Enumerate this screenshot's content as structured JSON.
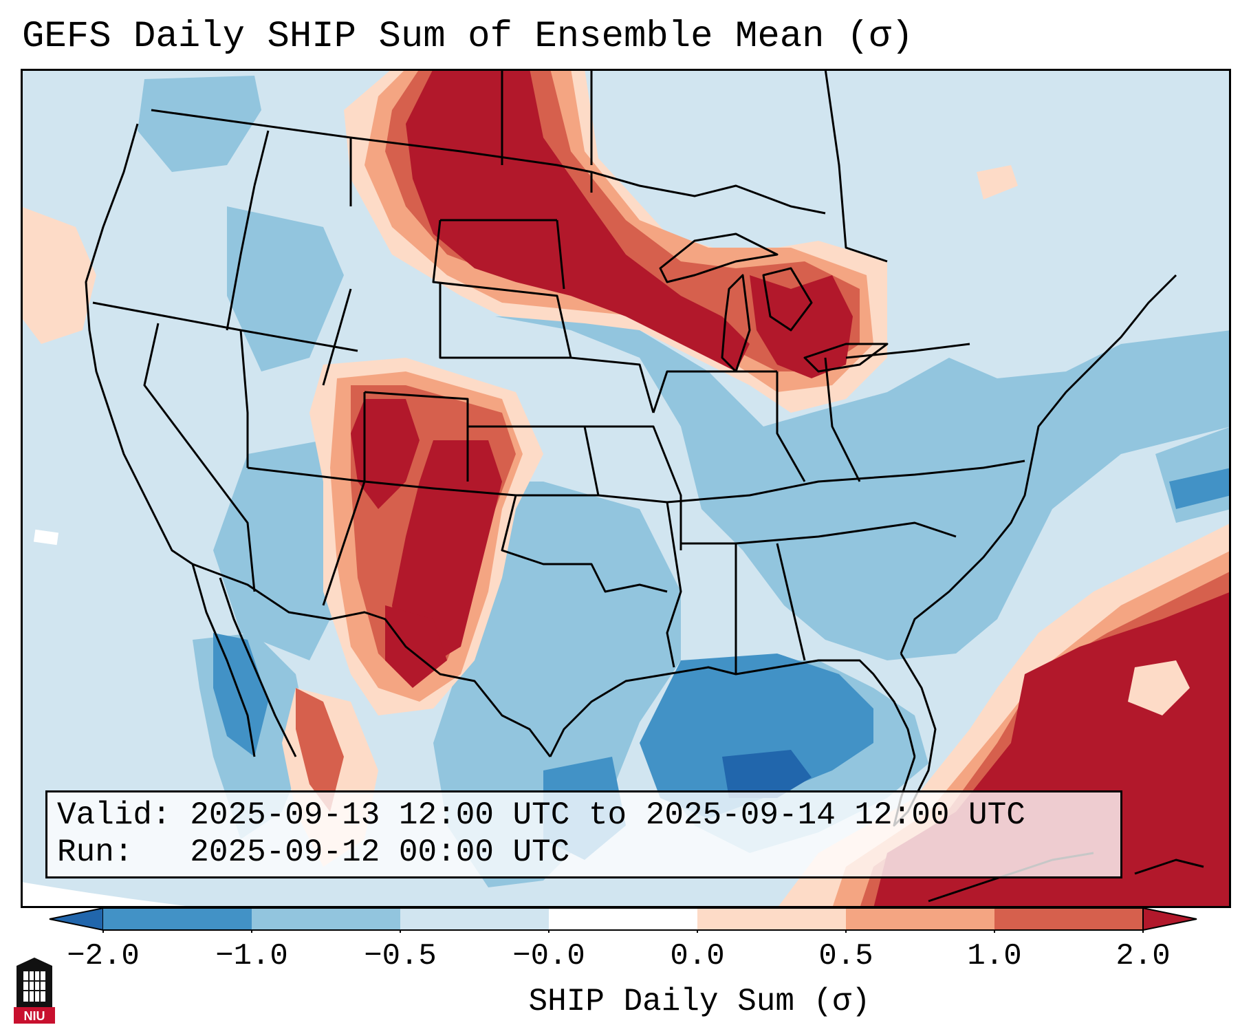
{
  "title": "GEFS Daily SHIP Sum of Ensemble Mean (σ)",
  "info": {
    "valid_label": "Valid:",
    "valid_value": "2025-09-13 12:00 UTC to 2025-09-14 12:00 UTC",
    "run_label": "Run:",
    "run_value": "2025-09-12 00:00 UTC"
  },
  "colorbar": {
    "label": "SHIP Daily Sum (σ)",
    "ticks": [
      "−2.0",
      "−1.0",
      "−0.5",
      "−0.0",
      "0.0",
      "0.5",
      "1.0",
      "2.0"
    ],
    "bin_colors": [
      "#4292c6",
      "#92c5de",
      "#d1e5f0",
      "#ffffff",
      "#fddbc7",
      "#f4a582",
      "#d6604d",
      "#b2182b"
    ],
    "extend_low_color": "#2166ac",
    "extend_high_color": "#b2182b"
  },
  "map": {
    "background_color": "#d1e5f0",
    "outside_color": "#ffffff",
    "border_color": "#000000"
  },
  "logo": {
    "text": "NIU",
    "icon": "niu-logo-icon"
  }
}
